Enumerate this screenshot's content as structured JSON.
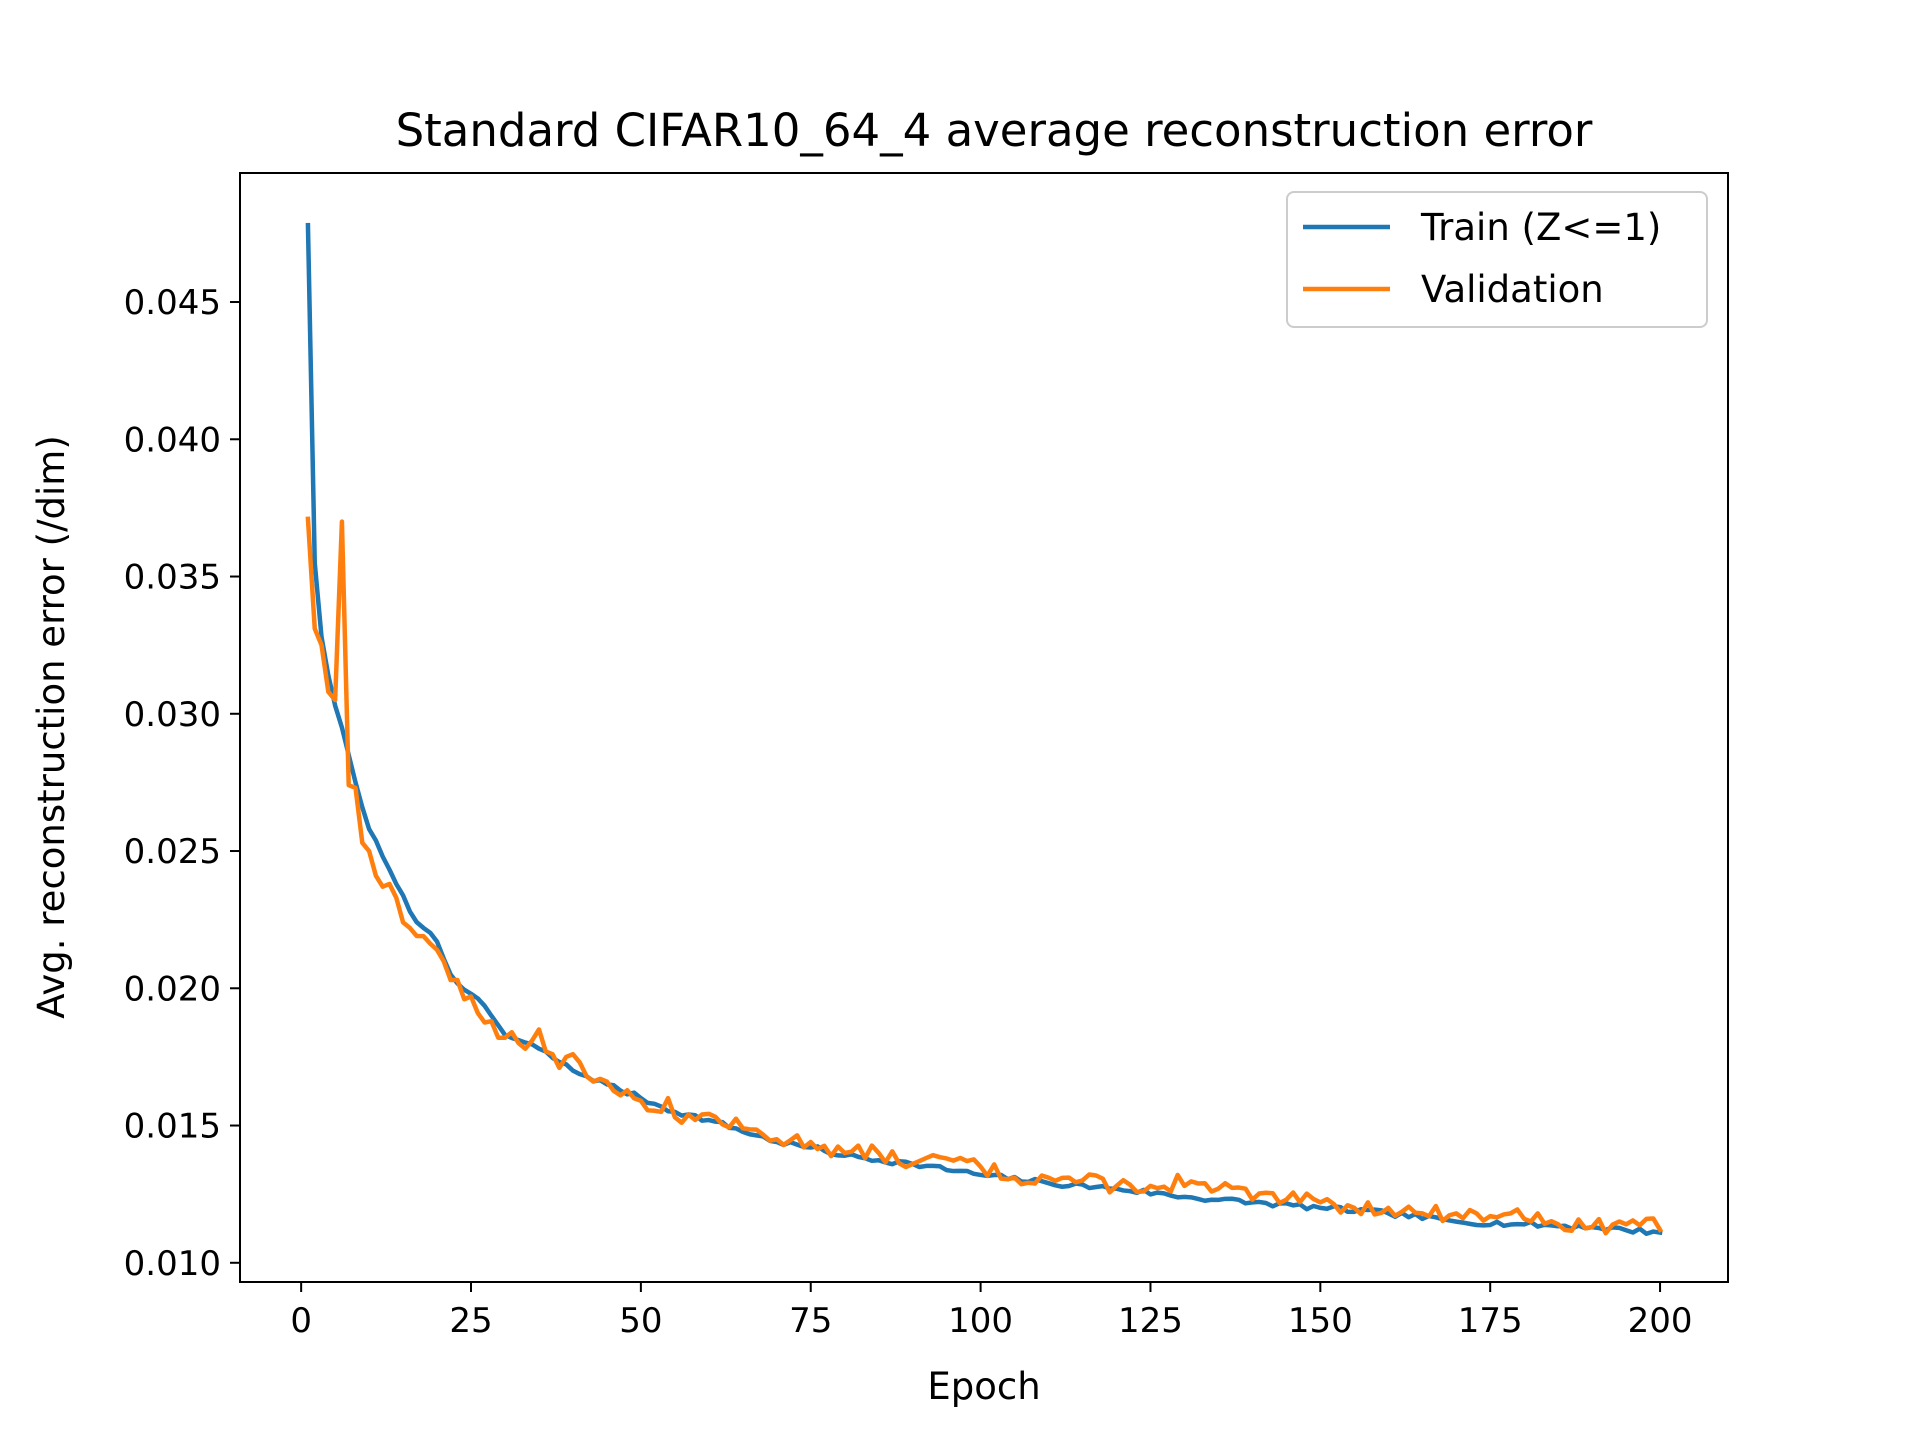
{
  "chart_data": {
    "type": "line",
    "title": "Standard CIFAR10_64_4 average reconstruction error",
    "xlabel": "Epoch",
    "ylabel": "Avg. reconstruction error (/dim)",
    "xlim": [
      -9,
      210
    ],
    "ylim": [
      0.0093,
      0.0497
    ],
    "xticks": [
      0,
      25,
      50,
      75,
      100,
      125,
      150,
      175,
      200
    ],
    "xtick_labels": [
      "0",
      "25",
      "50",
      "75",
      "100",
      "125",
      "150",
      "175",
      "200"
    ],
    "yticks": [
      0.01,
      0.015,
      0.02,
      0.025,
      0.03,
      0.035,
      0.04,
      0.045
    ],
    "ytick_labels": [
      "0.010",
      "0.015",
      "0.020",
      "0.025",
      "0.030",
      "0.035",
      "0.040",
      "0.045"
    ],
    "grid": false,
    "legend_position": "upper right",
    "anchors": {
      "train": [
        [
          1,
          0.0478
        ],
        [
          2,
          0.0355
        ],
        [
          3,
          0.0328
        ],
        [
          4,
          0.0314
        ],
        [
          5,
          0.0303
        ],
        [
          6,
          0.0295
        ],
        [
          7,
          0.0285
        ],
        [
          8,
          0.0275
        ],
        [
          10,
          0.0258
        ],
        [
          12,
          0.0248
        ],
        [
          14,
          0.0238
        ],
        [
          16,
          0.0228
        ],
        [
          18,
          0.0222
        ],
        [
          20,
          0.0217
        ],
        [
          22,
          0.0205
        ],
        [
          25,
          0.0198
        ],
        [
          28,
          0.019
        ],
        [
          30,
          0.0183
        ],
        [
          35,
          0.0178
        ],
        [
          40,
          0.017
        ],
        [
          45,
          0.0165
        ],
        [
          50,
          0.016
        ],
        [
          55,
          0.0155
        ],
        [
          60,
          0.0152
        ],
        [
          70,
          0.0144
        ],
        [
          75,
          0.0142
        ],
        [
          80,
          0.0139
        ],
        [
          90,
          0.0136
        ],
        [
          100,
          0.0132
        ],
        [
          110,
          0.0129
        ],
        [
          120,
          0.0127
        ],
        [
          130,
          0.0124
        ],
        [
          140,
          0.0122
        ],
        [
          150,
          0.012
        ],
        [
          160,
          0.0118
        ],
        [
          170,
          0.0115
        ],
        [
          180,
          0.0114
        ],
        [
          190,
          0.0113
        ],
        [
          200,
          0.0111
        ]
      ],
      "validation": [
        [
          1,
          0.0371
        ],
        [
          2,
          0.0331
        ],
        [
          3,
          0.0325
        ],
        [
          4,
          0.0308
        ],
        [
          5,
          0.0305
        ],
        [
          6,
          0.037
        ],
        [
          7,
          0.0274
        ],
        [
          8,
          0.0273
        ],
        [
          9,
          0.0253
        ],
        [
          10,
          0.025
        ],
        [
          11,
          0.0241
        ],
        [
          12,
          0.0237
        ],
        [
          13,
          0.0238
        ],
        [
          14,
          0.0233
        ],
        [
          15,
          0.0224
        ],
        [
          16,
          0.0222
        ],
        [
          18,
          0.0219
        ],
        [
          20,
          0.0214
        ],
        [
          22,
          0.0203
        ],
        [
          23,
          0.0203
        ],
        [
          24,
          0.0196
        ],
        [
          25,
          0.0197
        ],
        [
          26,
          0.0191
        ],
        [
          28,
          0.0188
        ],
        [
          29,
          0.0182
        ],
        [
          30,
          0.0182
        ],
        [
          31,
          0.0184
        ],
        [
          32,
          0.018
        ],
        [
          34,
          0.0181
        ],
        [
          35,
          0.0185
        ],
        [
          36,
          0.0177
        ],
        [
          37,
          0.0176
        ],
        [
          38,
          0.0171
        ],
        [
          39,
          0.0175
        ],
        [
          40,
          0.0176
        ],
        [
          41,
          0.0173
        ],
        [
          42,
          0.0168
        ],
        [
          43,
          0.0166
        ],
        [
          44,
          0.0167
        ],
        [
          45,
          0.0166
        ],
        [
          47,
          0.0161
        ],
        [
          50,
          0.0159
        ],
        [
          53,
          0.0155
        ],
        [
          54,
          0.016
        ],
        [
          55,
          0.0153
        ],
        [
          56,
          0.0151
        ],
        [
          57,
          0.0154
        ],
        [
          58,
          0.0152
        ],
        [
          59,
          0.0154
        ],
        [
          65,
          0.0149
        ],
        [
          70,
          0.0145
        ],
        [
          75,
          0.0144
        ],
        [
          80,
          0.014
        ],
        [
          85,
          0.014
        ],
        [
          90,
          0.0136
        ],
        [
          95,
          0.0138
        ],
        [
          100,
          0.0135
        ],
        [
          105,
          0.0131
        ],
        [
          110,
          0.0131
        ],
        [
          115,
          0.013
        ],
        [
          120,
          0.0128
        ],
        [
          125,
          0.0128
        ],
        [
          128,
          0.0126
        ],
        [
          129,
          0.0132
        ],
        [
          130,
          0.0128
        ],
        [
          135,
          0.0127
        ],
        [
          139,
          0.0127
        ],
        [
          140,
          0.0123
        ],
        [
          145,
          0.0123
        ],
        [
          150,
          0.0122
        ],
        [
          155,
          0.012
        ],
        [
          160,
          0.012
        ],
        [
          165,
          0.0118
        ],
        [
          170,
          0.0118
        ],
        [
          175,
          0.0117
        ],
        [
          178,
          0.0118
        ],
        [
          180,
          0.0116
        ],
        [
          182,
          0.0118
        ],
        [
          185,
          0.0114
        ],
        [
          190,
          0.0113
        ],
        [
          195,
          0.0114
        ],
        [
          198,
          0.0116
        ],
        [
          200,
          0.0112
        ]
      ]
    },
    "series": [
      {
        "name": "Train (Z<=1)",
        "color": "#1f77b4",
        "jitter": 0.0001,
        "seed": 7
      },
      {
        "name": "Validation",
        "color": "#ff7f0e",
        "jitter": 0.00028,
        "seed": 13
      }
    ]
  }
}
